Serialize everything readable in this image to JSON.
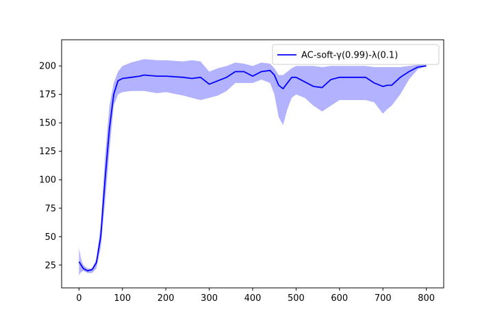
{
  "chart_data": {
    "type": "line",
    "title": "",
    "xlabel": "",
    "ylabel": "",
    "xlim": [
      -40,
      840
    ],
    "ylim": [
      5,
      223
    ],
    "xticks": [
      0,
      100,
      200,
      300,
      400,
      500,
      600,
      700,
      800
    ],
    "yticks": [
      25,
      50,
      75,
      100,
      125,
      150,
      175,
      200
    ],
    "grid": false,
    "legend_position": "top-right",
    "series": [
      {
        "name": "AC-soft-γ(0.99)-λ(0.1)",
        "color": "#0000ff",
        "band_color": "#0000ff",
        "x": [
          0,
          5,
          10,
          20,
          30,
          40,
          50,
          60,
          70,
          80,
          90,
          100,
          120,
          140,
          150,
          180,
          200,
          240,
          260,
          280,
          300,
          320,
          340,
          360,
          380,
          400,
          420,
          440,
          450,
          460,
          470,
          480,
          490,
          500,
          520,
          540,
          560,
          580,
          600,
          620,
          640,
          660,
          680,
          700,
          710,
          720,
          740,
          760,
          780,
          800
        ],
        "mean": [
          28,
          25,
          22,
          20,
          21,
          27,
          50,
          100,
          145,
          175,
          187,
          189,
          190,
          191,
          192,
          191,
          191,
          190,
          189,
          190,
          184,
          187,
          190,
          195,
          195,
          191,
          195,
          196,
          192,
          183,
          180,
          185,
          190,
          190,
          186,
          182,
          181,
          188,
          190,
          190,
          190,
          190,
          185,
          182,
          183,
          183,
          190,
          195,
          199,
          200
        ],
        "upper": [
          40,
          30,
          25,
          22,
          22,
          30,
          60,
          120,
          165,
          185,
          195,
          200,
          203,
          205,
          206,
          205,
          205,
          204,
          205,
          204,
          195,
          198,
          200,
          203,
          202,
          200,
          203,
          202,
          198,
          192,
          192,
          195,
          198,
          200,
          200,
          200,
          199,
          200,
          200,
          200,
          200,
          200,
          199,
          199,
          199,
          199,
          199,
          200,
          201,
          201
        ],
        "lower": [
          16,
          19,
          20,
          18,
          18,
          22,
          40,
          80,
          125,
          165,
          175,
          177,
          178,
          178,
          178,
          176,
          177,
          174,
          172,
          170,
          172,
          174,
          178,
          185,
          185,
          185,
          188,
          185,
          175,
          155,
          148,
          162,
          172,
          175,
          172,
          165,
          160,
          165,
          170,
          170,
          170,
          170,
          168,
          158,
          162,
          165,
          175,
          188,
          197,
          200
        ]
      }
    ]
  }
}
